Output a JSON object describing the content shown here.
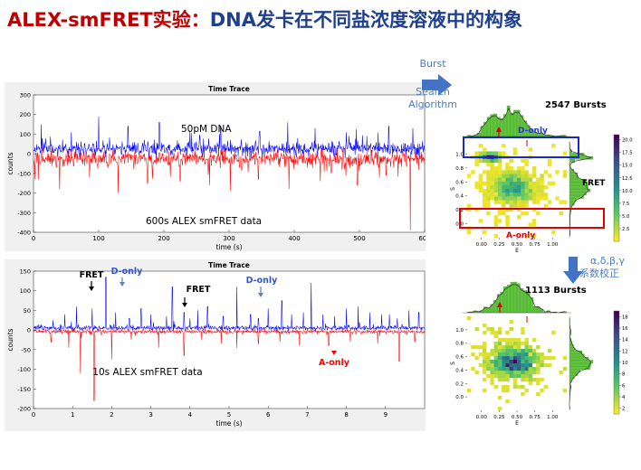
{
  "slide_title": {
    "part1": "ALEX-smFRET实验：",
    "part2": "DNA发卡在不同盐浓度溶液中的构象"
  },
  "workflow": {
    "algorithm_label_lines": [
      "Burst",
      "Search",
      "Algorithm"
    ],
    "correction_label_lines": [
      "α,δ,β,γ",
      "系数校正"
    ]
  },
  "colors": {
    "donor": "#0000ff",
    "acceptor": "#ff0000",
    "annotation_blue": "#3355cc",
    "arrow": "#4472c4",
    "hist": "#5fc43c"
  },
  "chart_data": [
    {
      "type": "line",
      "title": "Time Trace",
      "xlabel": "time (s)",
      "ylabel": "counts",
      "xlim": [
        0,
        600
      ],
      "ylim": [
        -400,
        300
      ],
      "xticks": [
        0,
        100,
        200,
        300,
        400,
        500,
        600
      ],
      "yticks": [
        300,
        200,
        100,
        0,
        -100,
        -200,
        -300,
        -400
      ],
      "series": [
        {
          "color": "#0000ff",
          "baseline": 25,
          "spread": 35,
          "spikes": [
            [
              12,
              150
            ],
            [
              58,
              110
            ],
            [
              100,
              190
            ],
            [
              145,
              140
            ],
            [
              193,
              160
            ],
            [
              240,
              120
            ],
            [
              287,
              140
            ],
            [
              347,
              115
            ],
            [
              390,
              160
            ],
            [
              432,
              130
            ],
            [
              480,
              110
            ],
            [
              545,
              140
            ],
            [
              582,
              130
            ]
          ]
        },
        {
          "color": "#ff0000",
          "baseline": -25,
          "spread": 40,
          "spikes": [
            [
              2,
              -130
            ],
            [
              40,
              -180
            ],
            [
              86,
              -120
            ],
            [
              130,
              -200
            ],
            [
              175,
              -150
            ],
            [
              225,
              -140
            ],
            [
              270,
              -160
            ],
            [
              302,
              -190
            ],
            [
              345,
              -130
            ],
            [
              392,
              -180
            ],
            [
              440,
              -140
            ],
            [
              497,
              -160
            ],
            [
              541,
              -110
            ],
            [
              578,
              -390
            ]
          ]
        }
      ],
      "annotations": [
        "50pM DNA",
        "600s ALEX smFRET data"
      ]
    },
    {
      "type": "line",
      "title": "Time Trace",
      "xlabel": "time (s)",
      "ylabel": "counts",
      "xlim": [
        0,
        10
      ],
      "ylim": [
        -200,
        150
      ],
      "xticks": [
        0,
        1,
        2,
        3,
        4,
        5,
        6,
        7,
        8,
        9
      ],
      "yticks": [
        150,
        100,
        50,
        0,
        -50,
        -100,
        -150,
        -200
      ],
      "series": [
        {
          "color": "#0000ff",
          "baseline": 5,
          "spread": 6,
          "spikes": [
            [
              0.5,
              25
            ],
            [
              0.8,
              40
            ],
            [
              1.1,
              60
            ],
            [
              1.5,
              55
            ],
            [
              1.85,
              135
            ],
            [
              2.1,
              45
            ],
            [
              2.45,
              30
            ],
            [
              2.75,
              55
            ],
            [
              3.0,
              40
            ],
            [
              3.4,
              35
            ],
            [
              3.55,
              110
            ],
            [
              3.85,
              45
            ],
            [
              4.0,
              30
            ],
            [
              4.2,
              50
            ],
            [
              4.45,
              60
            ],
            [
              4.85,
              35
            ],
            [
              5.2,
              110
            ],
            [
              5.55,
              40
            ],
            [
              5.75,
              30
            ],
            [
              6.0,
              55
            ],
            [
              6.35,
              75
            ],
            [
              6.6,
              40
            ],
            [
              6.9,
              45
            ],
            [
              7.1,
              120
            ],
            [
              7.4,
              40
            ],
            [
              7.7,
              35
            ],
            [
              8.0,
              55
            ],
            [
              8.3,
              60
            ],
            [
              8.6,
              45
            ],
            [
              8.9,
              40
            ],
            [
              9.1,
              40
            ],
            [
              9.3,
              30
            ],
            [
              9.6,
              50
            ],
            [
              9.85,
              45
            ]
          ]
        },
        {
          "color": "#ff0000",
          "baseline": -4,
          "spread": 5,
          "spikes": [
            [
              0.45,
              -30
            ],
            [
              0.9,
              -45
            ],
            [
              1.2,
              -110
            ],
            [
              1.55,
              -180
            ],
            [
              2.0,
              -75
            ],
            [
              2.5,
              -25
            ],
            [
              3.2,
              -45
            ],
            [
              3.85,
              -65
            ],
            [
              4.3,
              -25
            ],
            [
              4.8,
              -35
            ],
            [
              5.2,
              -45
            ],
            [
              5.75,
              -35
            ],
            [
              6.3,
              -30
            ],
            [
              6.8,
              -40
            ],
            [
              7.55,
              -40
            ],
            [
              8.1,
              -30
            ],
            [
              8.8,
              -35
            ],
            [
              9.35,
              -80
            ],
            [
              9.75,
              -30
            ]
          ]
        }
      ],
      "annotations": [
        "FRET",
        "D-only",
        "FRET",
        "D-only",
        "10s ALEX smFRET data",
        "A-only"
      ]
    },
    {
      "type": "heatmap",
      "title": "2547 Bursts",
      "xlabel": "E",
      "ylabel": "S",
      "xlim": [
        -0.2,
        1.2
      ],
      "ylim": [
        -0.2,
        1.2
      ],
      "xticks": [
        "0.00",
        "0.25",
        "0.50",
        "0.75",
        "1.00"
      ],
      "yticks": [
        "1.0",
        "0.8",
        "0.6",
        "0.4",
        "0.2",
        "0.0"
      ],
      "colorbar_ticks": [
        "20.0",
        "17.5",
        "15.0",
        "12.5",
        "10.0",
        "7.5",
        "5.0",
        "2.5"
      ],
      "colorbar_range": [
        0,
        21
      ],
      "clusters": [
        {
          "E": 0.12,
          "S": 0.96,
          "sE": 0.08,
          "sS": 0.03,
          "n": 300
        },
        {
          "E": 0.45,
          "S": 0.52,
          "sE": 0.16,
          "sS": 0.12,
          "n": 900
        },
        {
          "E": 0.45,
          "S": 0.45,
          "sE": 0.4,
          "sS": 0.35,
          "n": 180
        }
      ],
      "labels": [
        "D-only",
        "FRET",
        "A-only"
      ]
    },
    {
      "type": "heatmap",
      "title": "1113 Bursts",
      "xlabel": "E",
      "ylabel": "S",
      "xlim": [
        -0.2,
        1.2
      ],
      "ylim": [
        -0.2,
        1.2
      ],
      "xticks": [
        "0.00",
        "0.25",
        "0.50",
        "0.75",
        "1.00"
      ],
      "yticks": [
        "1.0",
        "0.8",
        "0.6",
        "0.4",
        "0.2",
        "0.0"
      ],
      "colorbar_ticks": [
        "18",
        "16",
        "14",
        "12",
        "10",
        "8",
        "6",
        "4",
        "2"
      ],
      "colorbar_range": [
        1,
        19
      ],
      "clusters": [
        {
          "E": 0.45,
          "S": 0.52,
          "sE": 0.17,
          "sS": 0.12,
          "n": 700
        },
        {
          "E": 0.4,
          "S": 0.5,
          "sE": 0.35,
          "sS": 0.3,
          "n": 150
        }
      ],
      "labels": []
    }
  ]
}
